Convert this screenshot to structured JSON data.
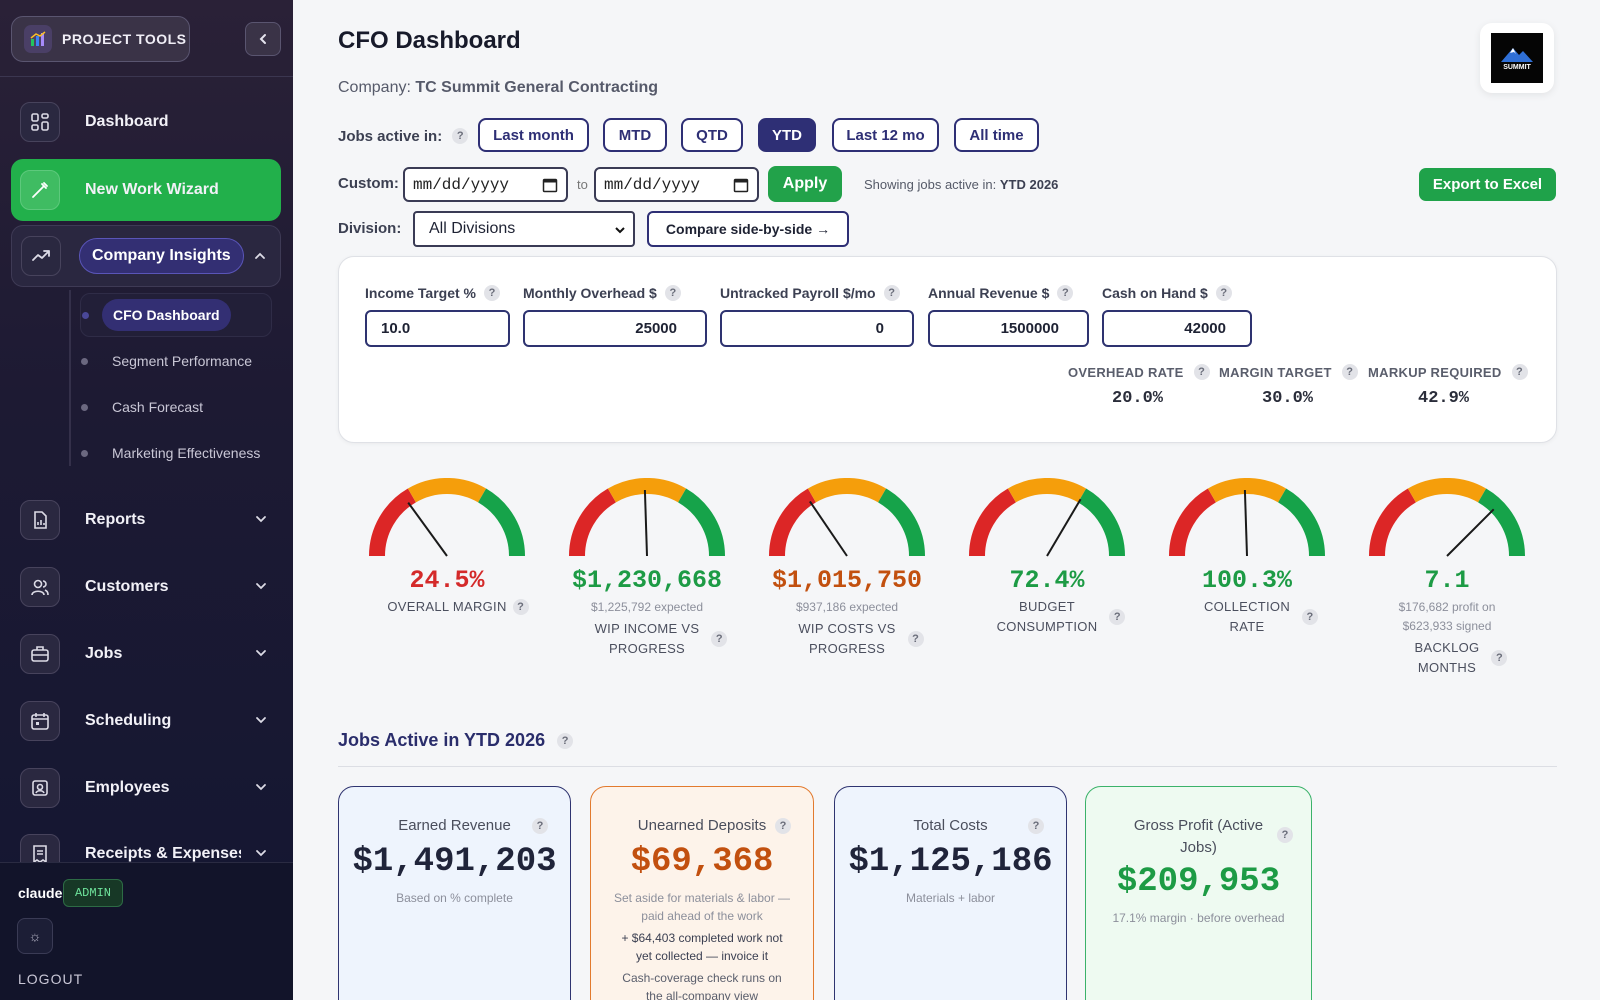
{
  "sidebar": {
    "brand": "PROJECT TOOLS",
    "nav": [
      {
        "label": "Dashboard",
        "icon": "grid-icon"
      },
      {
        "label": "New Work Wizard",
        "icon": "wand-icon"
      },
      {
        "label": "Company Insights",
        "icon": "trend-icon"
      },
      {
        "label": "Reports",
        "icon": "report-icon"
      },
      {
        "label": "Customers",
        "icon": "users-icon"
      },
      {
        "label": "Jobs",
        "icon": "briefcase-icon"
      },
      {
        "label": "Scheduling",
        "icon": "calendar-icon"
      },
      {
        "label": "Employees",
        "icon": "id-badge-icon"
      },
      {
        "label": "Receipts & Expenses",
        "icon": "receipt-icon"
      }
    ],
    "sub_items": [
      "CFO Dashboard",
      "Segment Performance",
      "Cash Forecast",
      "Marketing Effectiveness"
    ],
    "user": "claude",
    "role": "ADMIN",
    "logout": "LOGOUT"
  },
  "header": {
    "title": "CFO Dashboard",
    "company_label": "Company:",
    "company_name": "TC Summit General Contracting",
    "logo_text": "SUMMIT"
  },
  "filters": {
    "jobs_active_label": "Jobs active in:",
    "ranges": [
      "Last month",
      "MTD",
      "QTD",
      "YTD",
      "Last 12 mo",
      "All time"
    ],
    "selected": "YTD",
    "custom_label": "Custom:",
    "date_placeholder": "mm/dd/yyyy",
    "to": "to",
    "apply": "Apply",
    "showing_label": "Showing jobs active in:",
    "showing_value": "YTD 2026",
    "export": "Export to Excel",
    "division_label": "Division:",
    "division_value": "All Divisions",
    "compare": "Compare side-by-side →"
  },
  "inputs": {
    "income_target": {
      "label": "Income Target %",
      "value": "10.0"
    },
    "monthly_overhead": {
      "label": "Monthly Overhead $",
      "value": "25000"
    },
    "untracked_payroll": {
      "label": "Untracked Payroll $/mo",
      "value": "0"
    },
    "annual_revenue": {
      "label": "Annual Revenue $",
      "value": "1500000"
    },
    "cash_on_hand": {
      "label": "Cash on Hand $",
      "value": "42000"
    },
    "overhead_rate": {
      "label": "OVERHEAD RATE",
      "value": "20.0%"
    },
    "margin_target": {
      "label": "MARGIN TARGET",
      "value": "30.0%"
    },
    "markup_required": {
      "label": "MARKUP REQUIRED",
      "value": "42.9%"
    }
  },
  "gauges": [
    {
      "value": "24.5%",
      "sub": "",
      "label1": "OVERALL MARGIN",
      "label2": "",
      "color": "#d42a2a",
      "needle": 0.3
    },
    {
      "value": "$1,230,668",
      "sub": "$1,225,792 expected",
      "label1": "WIP INCOME VS",
      "label2": "PROGRESS",
      "color": "#1d9b45",
      "needle": 0.49
    },
    {
      "value": "$1,015,750",
      "sub": "$937,186 expected",
      "label1": "WIP COSTS VS",
      "label2": "PROGRESS",
      "color": "#c2500f",
      "needle": 0.31
    },
    {
      "value": "72.4%",
      "sub": "",
      "label1": "BUDGET",
      "label2": "CONSUMPTION",
      "color": "#1d9b45",
      "needle": 0.67
    },
    {
      "value": "100.3%",
      "sub": "",
      "label1": "COLLECTION",
      "label2": "RATE",
      "color": "#1d9b45",
      "needle": 0.49
    },
    {
      "value": "7.1",
      "sub": "$176,682 profit on $623,933 signed",
      "label1": "BACKLOG",
      "label2": "MONTHS",
      "color": "#1d9b45",
      "needle": 0.75
    }
  ],
  "gauge_colors": {
    "red": "#dc2626",
    "orange": "#f59e0b",
    "green": "#16a34a",
    "needle": "#1a1a1a"
  },
  "jobs_section": {
    "title": "Jobs Active in YTD 2026",
    "cards": [
      {
        "title": "Earned Revenue",
        "value": "$1,491,203",
        "notes": [
          "Based on % complete"
        ]
      },
      {
        "title": "Unearned Deposits",
        "value": "$69,368",
        "notes": [
          "Set aside for materials & labor — paid ahead of the work",
          "+ $64,403 completed work not yet collected — invoice it",
          "Cash-coverage check runs on the all-company view"
        ]
      },
      {
        "title": "Total Costs",
        "value": "$1,125,186",
        "notes": [
          "Materials + labor"
        ]
      },
      {
        "title": "Gross Profit (Active Jobs)",
        "value": "$209,953",
        "notes": [
          "17.1% margin · before overhead"
        ]
      }
    ]
  }
}
